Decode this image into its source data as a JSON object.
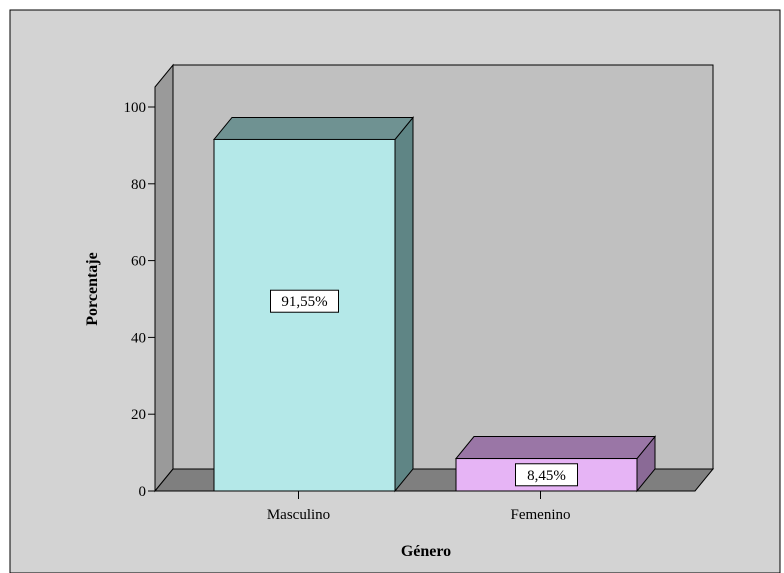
{
  "chart_data": {
    "type": "bar",
    "style": "3d",
    "categories": [
      "Masculino",
      "Femenino"
    ],
    "values": [
      91.55,
      8.45
    ],
    "data_labels": [
      "91,55%",
      "8,45%"
    ],
    "xlabel": "Género",
    "ylabel": "Porcentaje",
    "ylim": [
      0,
      100
    ],
    "yticks": [
      0,
      20,
      40,
      60,
      80,
      100
    ],
    "grid": false,
    "legend": "none",
    "colors": {
      "background": "#d3d3d3",
      "back_wall": "#c0c0c0",
      "side_wall": "#9a9a9a",
      "floor": "#7f7f7f",
      "bar_fronts": [
        "#b4e8e8",
        "#e6b4f5"
      ],
      "bar_tops": [
        "#6f9292",
        "#9a76a6"
      ],
      "bar_sides": [
        "#5f8585",
        "#8a6a96"
      ]
    }
  }
}
